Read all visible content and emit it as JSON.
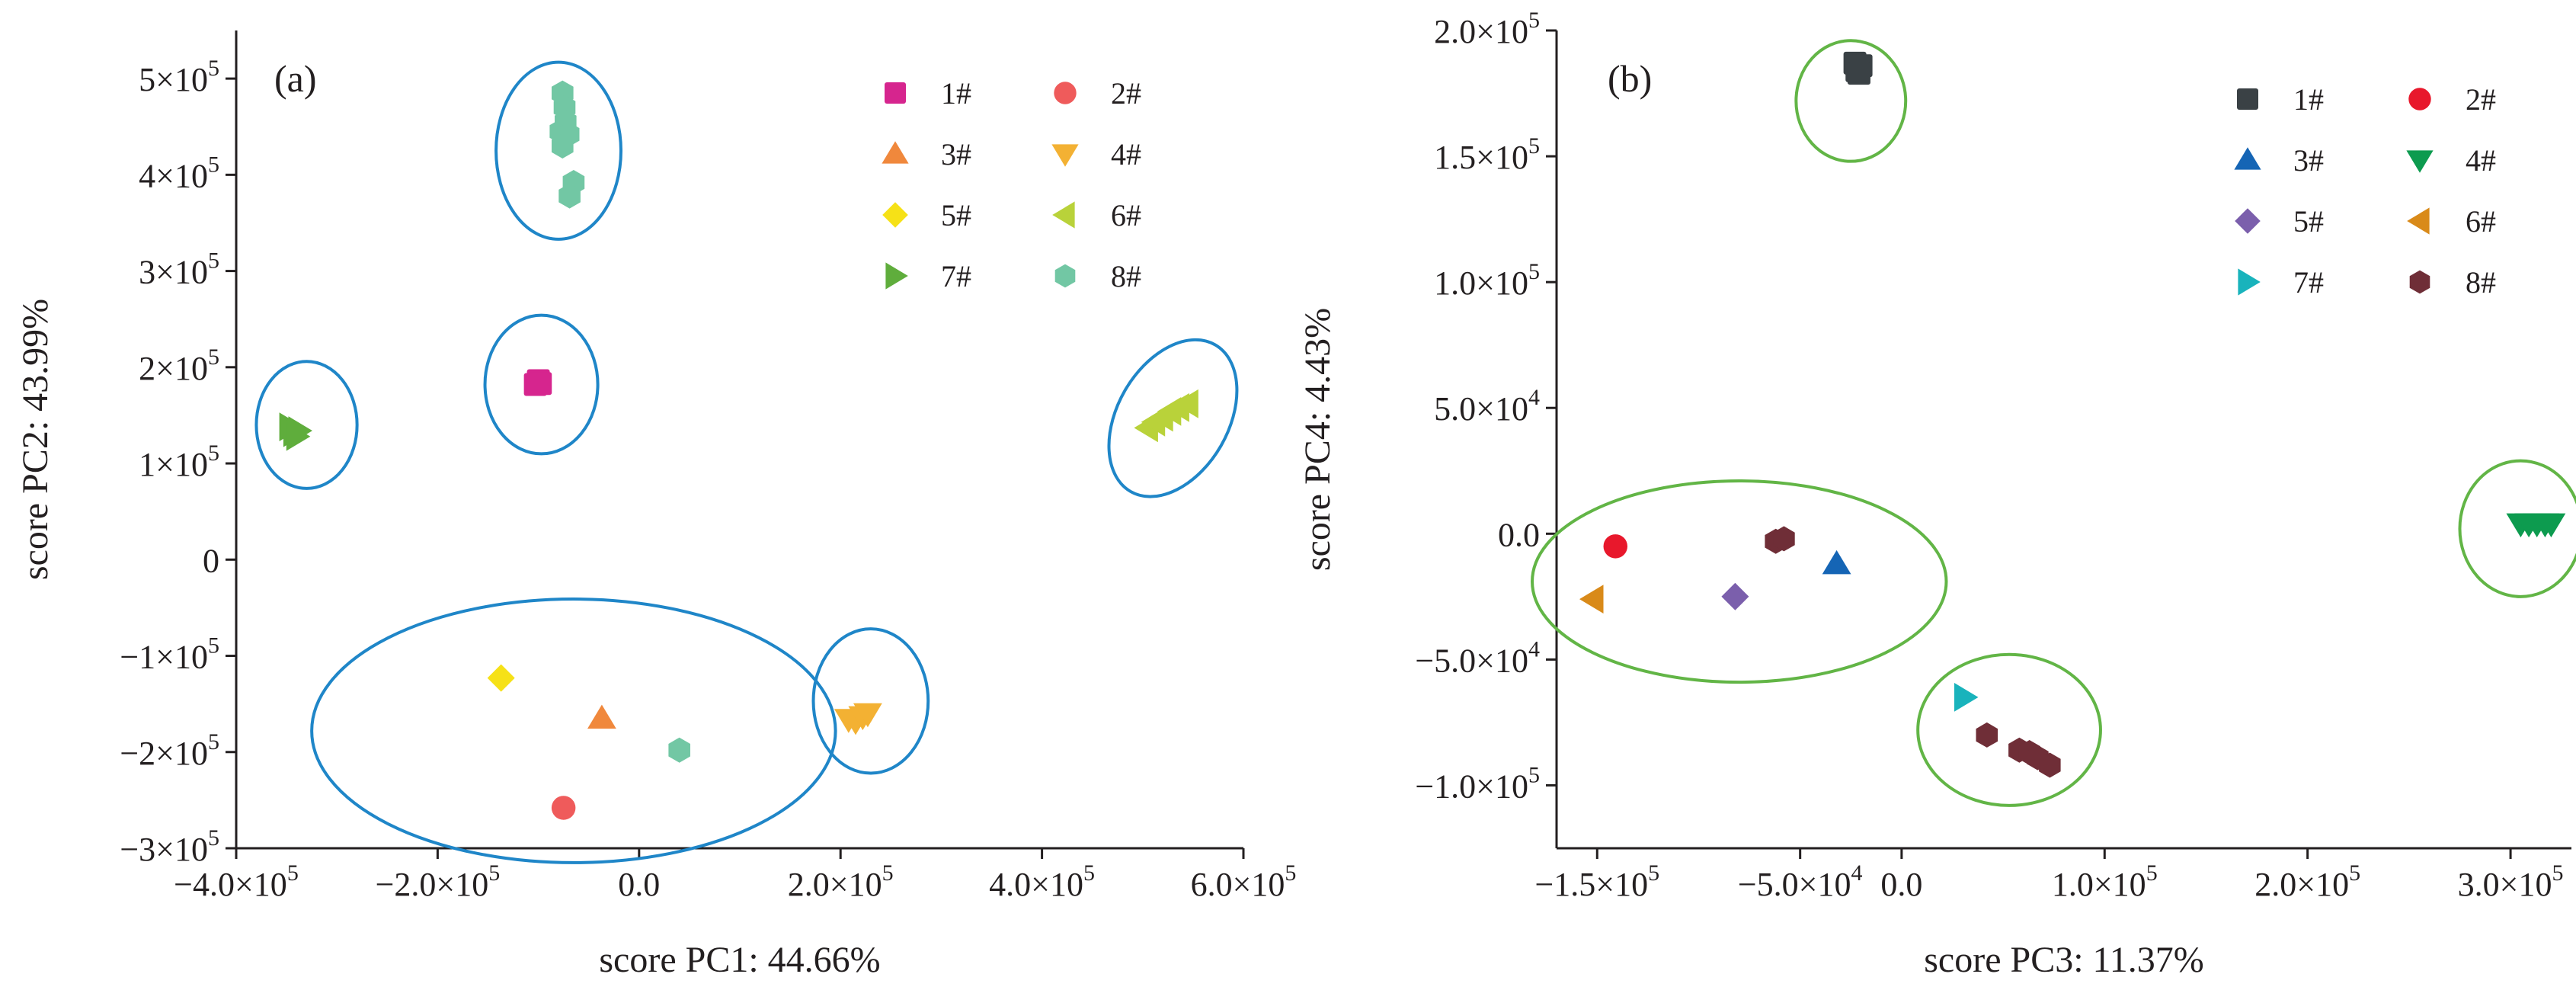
{
  "chart_data": [
    {
      "type": "scatter",
      "panel_label": "(a)",
      "xlabel": "score PC1: 44.66%",
      "ylabel": "score PC2: 43.99%",
      "xlim": [
        -400000,
        600000
      ],
      "ylim": [
        -300000,
        550000
      ],
      "x_ticks": [
        {
          "value": -400000,
          "mant": "−4.0×10",
          "exp": "5"
        },
        {
          "value": -200000,
          "mant": "−2.0×10",
          "exp": "5"
        },
        {
          "value": 0,
          "mant": "0.0",
          "exp": ""
        },
        {
          "value": 200000,
          "mant": "2.0×10",
          "exp": "5"
        },
        {
          "value": 400000,
          "mant": "4.0×10",
          "exp": "5"
        },
        {
          "value": 600000,
          "mant": "6.0×10",
          "exp": "5"
        }
      ],
      "y_ticks": [
        {
          "value": -300000,
          "mant": "−3×10",
          "exp": "5"
        },
        {
          "value": -200000,
          "mant": "−2×10",
          "exp": "5"
        },
        {
          "value": -100000,
          "mant": "−1×10",
          "exp": "5"
        },
        {
          "value": 0,
          "mant": "0",
          "exp": ""
        },
        {
          "value": 100000,
          "mant": "1×10",
          "exp": "5"
        },
        {
          "value": 200000,
          "mant": "2×10",
          "exp": "5"
        },
        {
          "value": 300000,
          "mant": "3×10",
          "exp": "5"
        },
        {
          "value": 400000,
          "mant": "4×10",
          "exp": "5"
        },
        {
          "value": 500000,
          "mant": "5×10",
          "exp": "5"
        }
      ],
      "legend_position": "top-right",
      "ellipse_color": "#1f86c8",
      "series": [
        {
          "name": "1#",
          "marker": "square",
          "color": "#d6258e",
          "points": [
            [
              -103000,
              182000
            ],
            [
              -100000,
              186000
            ],
            [
              -98000,
              183000
            ]
          ]
        },
        {
          "name": "2#",
          "marker": "circle",
          "color": "#ef5b5b",
          "points": [
            [
              -75000,
              -258000
            ]
          ]
        },
        {
          "name": "3#",
          "marker": "triangle-up",
          "color": "#f0883c",
          "points": [
            [
              -37000,
              -165000
            ]
          ]
        },
        {
          "name": "4#",
          "marker": "triangle-down",
          "color": "#f3b133",
          "points": [
            [
              208000,
              -166000
            ],
            [
              215000,
              -168000
            ],
            [
              222000,
              -163000
            ],
            [
              227000,
              -160000
            ]
          ]
        },
        {
          "name": "5#",
          "marker": "diamond",
          "color": "#f6e117",
          "points": [
            [
              -137000,
              -123000
            ]
          ]
        },
        {
          "name": "6#",
          "marker": "triangle-left",
          "color": "#b9d23a",
          "points": [
            [
              505000,
              137000
            ],
            [
              512000,
              143000
            ],
            [
              520000,
              148000
            ],
            [
              528000,
              154000
            ],
            [
              536000,
              158000
            ],
            [
              545000,
              162000
            ]
          ]
        },
        {
          "name": "7#",
          "marker": "triangle-right",
          "color": "#5fad3c",
          "points": [
            [
              -347000,
              138000
            ],
            [
              -343000,
              132000
            ],
            [
              -340000,
              128000
            ],
            [
              -338000,
              134000
            ]
          ]
        },
        {
          "name": "8#",
          "marker": "hexagon",
          "color": "#72c7a4",
          "points": [
            [
              -76000,
              485000
            ],
            [
              -74000,
              470000
            ],
            [
              -73000,
              455000
            ],
            [
              -78000,
              445000
            ],
            [
              -70000,
              442000
            ],
            [
              -76000,
              430000
            ],
            [
              -65000,
              392000
            ],
            [
              -69000,
              378000
            ],
            [
              40000,
              -198000
            ]
          ]
        }
      ],
      "ellipses": [
        {
          "cx": -80000,
          "cy": 425000,
          "rx": 62000,
          "ry": 92000
        },
        {
          "cx": -97000,
          "cy": 182000,
          "rx": 56000,
          "ry": 72000
        },
        {
          "cx": -330000,
          "cy": 140000,
          "rx": 50000,
          "ry": 66000
        },
        {
          "cx": 530000,
          "cy": 147000,
          "rx": 55000,
          "ry": 88000,
          "rotate": 30
        },
        {
          "cx": -65000,
          "cy": -178000,
          "rx": 260000,
          "ry": 137000
        },
        {
          "cx": 230000,
          "cy": -147000,
          "rx": 57000,
          "ry": 75000
        }
      ]
    },
    {
      "type": "scatter",
      "panel_label": "(b)",
      "xlabel": "score PC3: 11.37%",
      "ylabel": "score PC4: 4.43%",
      "xlim": [
        -170000,
        330000
      ],
      "ylim": [
        -125000,
        200000
      ],
      "x_ticks": [
        {
          "value": -150000,
          "mant": "−1.5×10",
          "exp": "5"
        },
        {
          "value": -50000,
          "mant": "−5.0×10",
          "exp": "4"
        },
        {
          "value": 0,
          "mant": "0.0",
          "exp": ""
        },
        {
          "value": 100000,
          "mant": "1.0×10",
          "exp": "5"
        },
        {
          "value": 200000,
          "mant": "2.0×10",
          "exp": "5"
        },
        {
          "value": 300000,
          "mant": "3.0×10",
          "exp": "5"
        }
      ],
      "y_ticks": [
        {
          "value": -100000,
          "mant": "−1.0×10",
          "exp": "5"
        },
        {
          "value": -50000,
          "mant": "−5.0×10",
          "exp": "4"
        },
        {
          "value": 0,
          "mant": "0.0",
          "exp": ""
        },
        {
          "value": 50000,
          "mant": "5.0×10",
          "exp": "4"
        },
        {
          "value": 100000,
          "mant": "1.0×10",
          "exp": "5"
        },
        {
          "value": 150000,
          "mant": "1.5×10",
          "exp": "5"
        },
        {
          "value": 200000,
          "mant": "2.0×10",
          "exp": "5"
        }
      ],
      "legend_position": "top-right",
      "ellipse_color": "#62b546",
      "series": [
        {
          "name": "1#",
          "marker": "square",
          "color": "#3a4145",
          "points": [
            [
              -23000,
              187000
            ],
            [
              -22000,
              184000
            ],
            [
              -20000,
              186000
            ],
            [
              -21000,
              183000
            ]
          ]
        },
        {
          "name": "2#",
          "marker": "circle",
          "color": "#e8182c",
          "points": [
            [
              -141000,
              -5000
            ]
          ]
        },
        {
          "name": "3#",
          "marker": "triangle-up",
          "color": "#1565b5",
          "points": [
            [
              -32000,
              -12000
            ]
          ]
        },
        {
          "name": "4#",
          "marker": "triangle-down",
          "color": "#0d9b4f",
          "points": [
            [
              305000,
              4000
            ],
            [
              309000,
              4000
            ],
            [
              313000,
              4000
            ],
            [
              317000,
              4000
            ],
            [
              320000,
              4000
            ]
          ]
        },
        {
          "name": "5#",
          "marker": "diamond",
          "color": "#7b5fac",
          "points": [
            [
              -82000,
              -25000
            ]
          ]
        },
        {
          "name": "6#",
          "marker": "triangle-left",
          "color": "#d98a19",
          "points": [
            [
              -152000,
              -26000
            ]
          ]
        },
        {
          "name": "7#",
          "marker": "triangle-right",
          "color": "#19b3bc",
          "points": [
            [
              31000,
              -65000
            ]
          ]
        },
        {
          "name": "8#",
          "marker": "hexagon",
          "color": "#6f2e37",
          "points": [
            [
              -62000,
              -3000
            ],
            [
              -58000,
              -2000
            ],
            [
              42000,
              -80000
            ],
            [
              58000,
              -86000
            ],
            [
              63000,
              -87000
            ],
            [
              67000,
              -89000
            ],
            [
              73000,
              -92000
            ]
          ]
        }
      ],
      "ellipses": [
        {
          "cx": -25000,
          "cy": 172000,
          "rx": 27000,
          "ry": 24000
        },
        {
          "cx": -80000,
          "cy": -19000,
          "rx": 102000,
          "ry": 40000
        },
        {
          "cx": 53000,
          "cy": -78000,
          "rx": 45000,
          "ry": 30000
        },
        {
          "cx": 305000,
          "cy": 2000,
          "rx": 30000,
          "ry": 27000
        }
      ]
    }
  ]
}
